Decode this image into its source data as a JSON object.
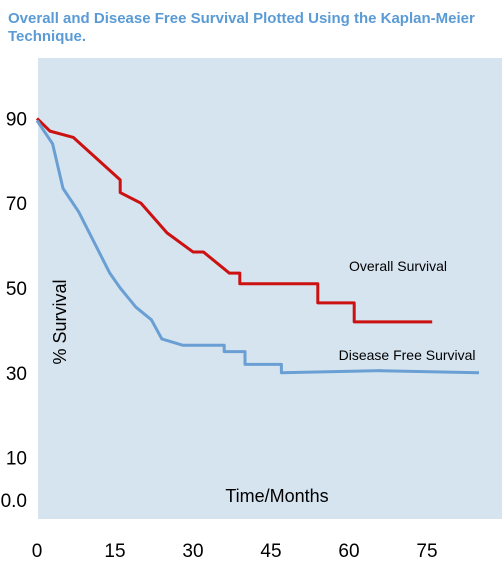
{
  "chart_data": {
    "type": "line",
    "title": "Overall and Disease Free Survival Plotted Using the Kaplan-Meier Technique.",
    "xlabel": "Time/Months",
    "ylabel": "% Survival",
    "xlim": [
      0,
      89
    ],
    "ylim": [
      0,
      92
    ],
    "x_ticks": [
      "0",
      "15",
      "30",
      "45",
      "60",
      "75"
    ],
    "x_tick_values": [
      0,
      15,
      30,
      45,
      60,
      75
    ],
    "y_ticks": [
      "0.0",
      "10",
      "30",
      "50",
      "70",
      "90"
    ],
    "y_tick_values": [
      0,
      10,
      30,
      50,
      70,
      90
    ],
    "grid": false,
    "colors": {
      "plot_bg": "#d6e4f0",
      "overall": "#cc1111",
      "disease_free": "#6a9fd4",
      "title": "#5b9bd5"
    },
    "series": [
      {
        "name": "Overall Survival",
        "color": "#cc1111",
        "points": [
          [
            0,
            90
          ],
          [
            2.5,
            87
          ],
          [
            7,
            85.5
          ],
          [
            16,
            75.5
          ],
          [
            16,
            72.5
          ],
          [
            20,
            70
          ],
          [
            25,
            63
          ],
          [
            30,
            58.5
          ],
          [
            32,
            58.5
          ],
          [
            37,
            53.5
          ],
          [
            39,
            53.5
          ],
          [
            39,
            51
          ],
          [
            54,
            51
          ],
          [
            54,
            46.5
          ],
          [
            61,
            46.5
          ],
          [
            61,
            42
          ],
          [
            76,
            42
          ]
        ]
      },
      {
        "name": "Disease Free Survival",
        "color": "#6a9fd4",
        "points": [
          [
            0,
            89.5
          ],
          [
            3,
            84
          ],
          [
            5,
            73.5
          ],
          [
            8,
            68
          ],
          [
            14,
            53.5
          ],
          [
            16,
            50
          ],
          [
            19,
            45.5
          ],
          [
            22,
            42.5
          ],
          [
            24,
            38
          ],
          [
            28,
            36.5
          ],
          [
            36,
            36.5
          ],
          [
            36,
            35
          ],
          [
            40,
            35
          ],
          [
            40,
            32
          ],
          [
            47,
            32
          ],
          [
            47,
            30
          ],
          [
            66,
            30.5
          ],
          [
            85,
            30
          ]
        ]
      }
    ],
    "annotations": [
      {
        "text": "Overall Survival",
        "x": 60,
        "y": 54
      },
      {
        "text": "Disease Free Survival",
        "x": 58,
        "y": 33
      }
    ]
  }
}
